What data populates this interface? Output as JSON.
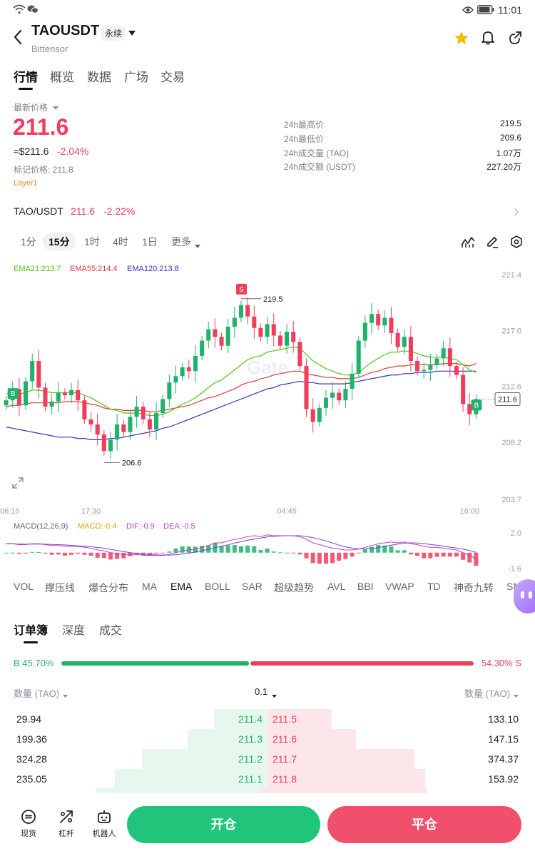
{
  "status": {
    "time": "11:01"
  },
  "header": {
    "symbol": "TAOUSDT",
    "contract_badge": "永续",
    "subtitle": "Bittensor"
  },
  "tabs": [
    "行情",
    "概览",
    "数据",
    "广场",
    "交易"
  ],
  "price": {
    "label": "最新价格",
    "last": "211.6",
    "usd": "≈$211.6",
    "change": "-2.04%",
    "mark": "标记价格: 211.8",
    "tag": "Layer1"
  },
  "stats": [
    {
      "label": "24h最高价",
      "value": "219.5"
    },
    {
      "label": "24h最低价",
      "value": "209.6"
    },
    {
      "label": "24h成交量 (TAO)",
      "value": "1.07万"
    },
    {
      "label": "24h成交额 (USDT)",
      "value": "227.20万"
    }
  ],
  "spot_pair": {
    "name": "TAO/USDT",
    "price": "211.6",
    "change": "-2.22%"
  },
  "timeframes": [
    "1分",
    "15分",
    "1时",
    "4时",
    "1日",
    "更多"
  ],
  "ema_legend": [
    "EMA21:213.7",
    "EMA55:214.4",
    "EMA120:213.8"
  ],
  "macd_legend": [
    "MACD(12,26,9)",
    "MACD:-0.4",
    "DIF:-0.9",
    "DEA:-0.5"
  ],
  "colors": {
    "green": "#20b26c",
    "red": "#ef3e5d",
    "ema21": "#52c41a",
    "ema55": "#e23c3c",
    "ema120": "#3a2fb8",
    "macd_line": "#c43fc4"
  },
  "chart_data": {
    "type": "candlestick",
    "y_ticks": [
      "221.4",
      "217.0",
      "212.6",
      "208.2",
      "203.7"
    ],
    "x_ticks": [
      "06:15",
      "17:30",
      "04:45",
      "16:00"
    ],
    "ylim": [
      203.7,
      221.4
    ],
    "high_label": "219.5",
    "low_label": "206.6",
    "current_price": "211.6",
    "macd_ticks": [
      "2.0",
      "-1.6"
    ],
    "markers": [
      "S",
      "B",
      "B"
    ],
    "close": [
      211.5,
      212.4,
      211.1,
      213.0,
      214.6,
      212.5,
      211.0,
      211.4,
      212.1,
      211.9,
      212.3,
      211.5,
      210.0,
      209.6,
      208.8,
      207.5,
      208.4,
      209.6,
      209.0,
      210.2,
      211.0,
      210.0,
      209.2,
      210.5,
      211.6,
      212.9,
      213.4,
      214.1,
      213.8,
      215.0,
      216.2,
      217.1,
      216.5,
      215.8,
      217.3,
      218.0,
      219.0,
      218.1,
      217.2,
      216.5,
      217.5,
      216.6,
      215.8,
      216.9,
      216.1,
      214.2,
      210.8,
      209.8,
      210.9,
      211.7,
      212.1,
      211.5,
      212.4,
      213.6,
      216.2,
      217.6,
      218.3,
      217.4,
      218.0,
      216.8,
      215.7,
      216.5,
      214.6,
      213.8,
      213.9,
      214.3,
      214.8,
      215.6,
      214.2,
      213.5,
      211.2,
      210.4,
      211.6
    ],
    "ema21": [
      212.0,
      212.1,
      212.0,
      212.1,
      212.3,
      212.3,
      212.2,
      212.1,
      212.1,
      212.1,
      212.1,
      212.1,
      211.9,
      211.7,
      211.4,
      211.1,
      210.8,
      210.7,
      210.5,
      210.5,
      210.5,
      210.4,
      210.3,
      210.3,
      210.4,
      210.6,
      210.9,
      211.2,
      211.4,
      211.7,
      212.1,
      212.5,
      212.9,
      213.1,
      213.5,
      213.9,
      214.3,
      214.7,
      214.9,
      215.0,
      215.3,
      215.4,
      215.5,
      215.6,
      215.7,
      215.6,
      215.1,
      214.6,
      214.3,
      214.0,
      213.8,
      213.6,
      213.5,
      213.5,
      213.7,
      214.1,
      214.5,
      214.8,
      215.1,
      215.3,
      215.3,
      215.4,
      215.3,
      215.2,
      215.0,
      214.9,
      214.9,
      214.9,
      214.8,
      214.7,
      214.3,
      213.9,
      213.7
    ],
    "ema55": [
      211.0,
      211.1,
      211.1,
      211.2,
      211.3,
      211.3,
      211.3,
      211.3,
      211.3,
      211.4,
      211.4,
      211.4,
      211.3,
      211.2,
      211.1,
      210.9,
      210.8,
      210.8,
      210.7,
      210.7,
      210.7,
      210.7,
      210.6,
      210.6,
      210.7,
      210.8,
      210.9,
      211.0,
      211.1,
      211.3,
      211.5,
      211.7,
      211.8,
      212.0,
      212.2,
      212.4,
      212.7,
      212.9,
      213.0,
      213.2,
      213.3,
      213.5,
      213.6,
      213.7,
      213.8,
      213.8,
      213.6,
      213.5,
      213.4,
      213.3,
      213.3,
      213.2,
      213.2,
      213.2,
      213.3,
      213.5,
      213.7,
      213.8,
      214.0,
      214.1,
      214.2,
      214.2,
      214.3,
      214.3,
      214.3,
      214.3,
      214.3,
      214.4,
      214.4,
      214.4,
      214.3,
      214.2,
      214.4
    ],
    "ema120": [
      209.4,
      209.3,
      209.2,
      209.1,
      209.0,
      208.9,
      208.8,
      208.7,
      208.6,
      208.6,
      208.6,
      208.5,
      208.5,
      208.4,
      208.4,
      208.4,
      208.5,
      208.5,
      208.6,
      208.7,
      208.8,
      208.9,
      209.0,
      209.1,
      209.3,
      209.4,
      209.6,
      209.8,
      210.0,
      210.2,
      210.4,
      210.6,
      210.8,
      211.0,
      211.2,
      211.4,
      211.6,
      211.8,
      212.0,
      212.2,
      212.4,
      212.5,
      212.7,
      212.8,
      212.9,
      213.0,
      212.9,
      212.9,
      212.8,
      212.8,
      212.8,
      212.8,
      212.8,
      212.9,
      213.0,
      213.1,
      213.2,
      213.3,
      213.4,
      213.5,
      213.5,
      213.6,
      213.6,
      213.7,
      213.7,
      213.7,
      213.8,
      213.8,
      213.8,
      213.8,
      213.8,
      213.8,
      213.8
    ]
  },
  "indicators": [
    "VOL",
    "撑压线",
    "爆仓分布",
    "MA",
    "EMA",
    "BOLL",
    "SAR",
    "超级趋势",
    "AVL",
    "BBI",
    "VWAP",
    "TD",
    "神奇九转",
    "SM"
  ],
  "orderbook": {
    "tabs": [
      "订单簿",
      "深度",
      "成交"
    ],
    "buy_ratio": "B 45.70%",
    "sell_ratio": "54.30% S",
    "buy_fraction": 0.457,
    "col_left": "数量 (TAO)",
    "precision": "0.1",
    "col_right": "数量 (TAO)",
    "rows": [
      {
        "bid_qty": "29.94",
        "bid": "211.4",
        "ask": "211.5",
        "ask_qty": "133.10",
        "bid_depth": 0.2,
        "ask_depth": 0.24
      },
      {
        "bid_qty": "199.36",
        "bid": "211.3",
        "ask": "211.6",
        "ask_qty": "147.15",
        "bid_depth": 0.3,
        "ask_depth": 0.33
      },
      {
        "bid_qty": "324.28",
        "bid": "211.2",
        "ask": "211.7",
        "ask_qty": "374.37",
        "bid_depth": 0.47,
        "ask_depth": 0.55
      },
      {
        "bid_qty": "235.05",
        "bid": "211.1",
        "ask": "211.8",
        "ask_qty": "153.92",
        "bid_depth": 0.57,
        "ask_depth": 0.59
      }
    ]
  },
  "bottom": {
    "spot": "现货",
    "leverage": "杠杆",
    "robot": "机器人",
    "open": "开仓",
    "close": "平仓"
  }
}
